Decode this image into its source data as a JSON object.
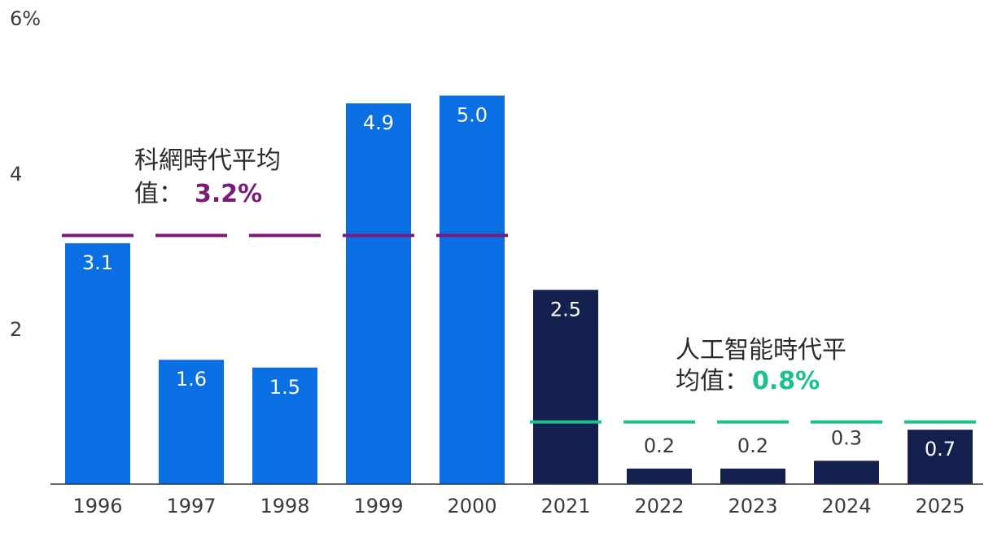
{
  "colors": {
    "era1_bar": "#0a6fe3",
    "era2_bar": "#14204e",
    "era1_avg": "#7b1a78",
    "era2_avg": "#1cbf8e",
    "axis": "#333333",
    "text": "#3a3a3a"
  },
  "chart_data": {
    "type": "bar",
    "categories": [
      "1996",
      "1997",
      "1998",
      "1999",
      "2000",
      "2021",
      "2022",
      "2023",
      "2024",
      "2025"
    ],
    "values": [
      3.1,
      1.6,
      1.5,
      4.9,
      5.0,
      2.5,
      0.2,
      0.2,
      0.3,
      0.7
    ],
    "value_labels": [
      "3.1",
      "1.6",
      "1.5",
      "4.9",
      "5.0",
      "2.5",
      "0.2",
      "0.2",
      "0.3",
      "0.7"
    ],
    "ylim": [
      0,
      6
    ],
    "yticks": [
      {
        "value": 2,
        "label": "2"
      },
      {
        "value": 4,
        "label": "4"
      },
      {
        "value": 6,
        "label": "6%"
      }
    ],
    "grid": false,
    "eras": [
      {
        "label_line1": "科網時代平均",
        "label_line2": "值：",
        "avg_label": "3.2%",
        "avg": 3.2,
        "start": 0,
        "end": 4
      },
      {
        "label_line1": "人工智能時代平",
        "label_line2": "均值：",
        "avg_label": "0.8%",
        "avg": 0.8,
        "start": 5,
        "end": 9
      }
    ]
  }
}
